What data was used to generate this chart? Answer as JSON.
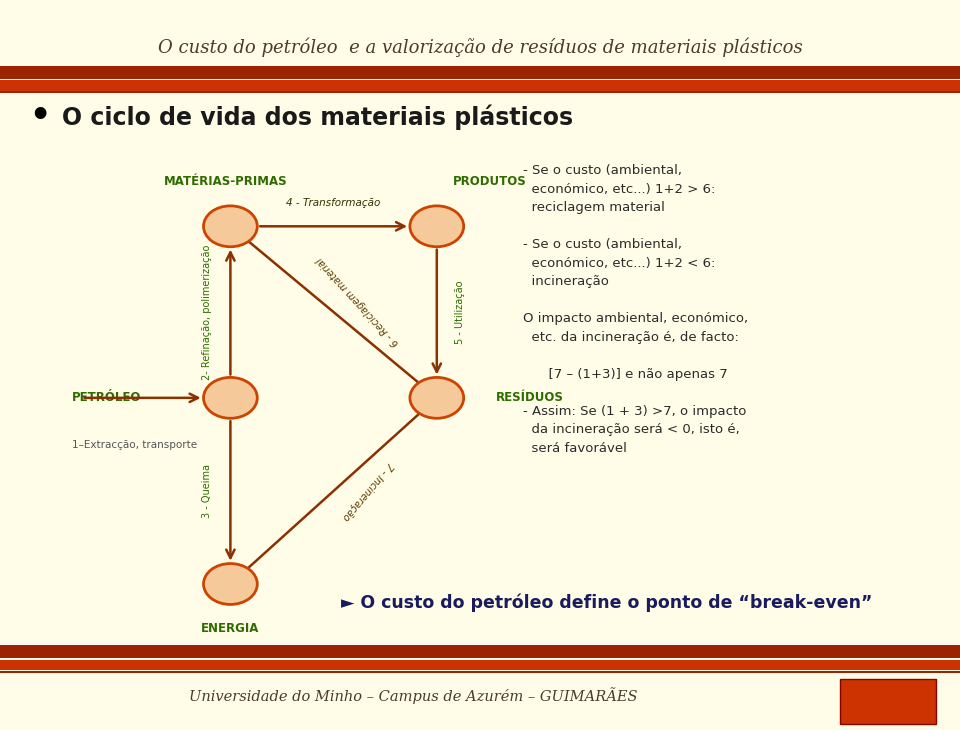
{
  "bg_color": "#FFFDE7",
  "title_text": "O custo do petróleo  e a valorização de resíduos de materiais plásticos",
  "title_text_color": "#4B3B2A",
  "main_heading": "O ciclo de vida dos materiais plásticos",
  "node_fill": "#F5C99A",
  "node_edge": "#CC4400",
  "arrow_color": "#8B3000",
  "label_color": "#2E6B00",
  "footer_text": "Universidade do Minho – Campus de Azurém – GUIMARÃES",
  "footer_color": "#4B3B2A",
  "bottom_text": "► O custo do petróleo define o ponto de “break-even”",
  "bar_dark": "#9B2300",
  "bar_bright": "#CC3300"
}
